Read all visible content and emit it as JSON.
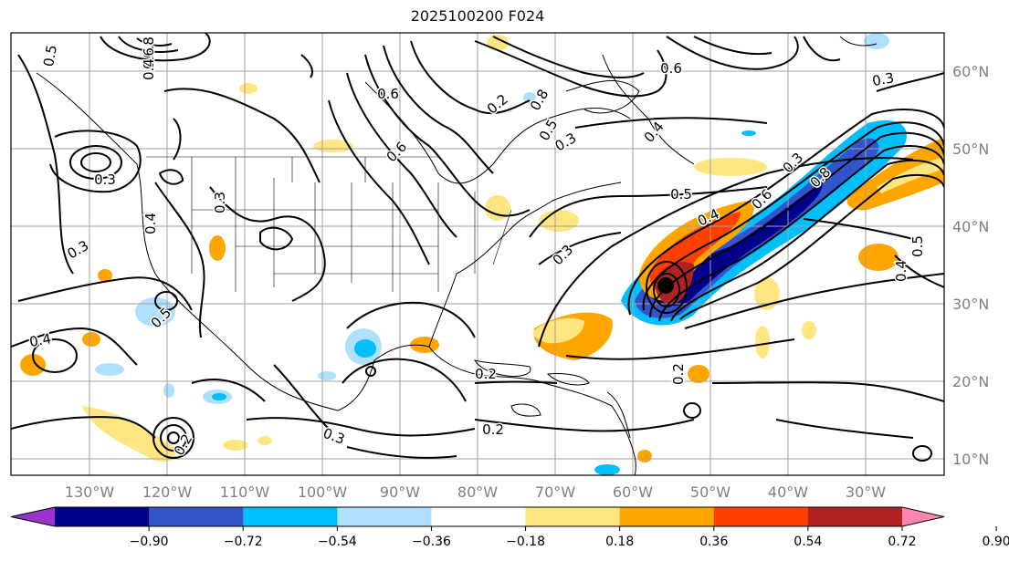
{
  "title": "2025100200 F024",
  "map": {
    "lon_labels": [
      "130°W",
      "120°W",
      "110°W",
      "100°W",
      "90°W",
      "80°W",
      "70°W",
      "60°W",
      "50°W",
      "40°W",
      "30°W"
    ],
    "lat_labels": [
      "60°N",
      "50°N",
      "40°N",
      "30°N",
      "20°N",
      "10°N"
    ],
    "contour_labels": [
      "0.8",
      "0.6",
      "0.4",
      "0.5",
      "0.6",
      "0.2",
      "0.8",
      "0.5",
      "0.3",
      "0.6",
      "0.3",
      "0.3",
      "0.3",
      "0.4",
      "0.5",
      "0.4",
      "0.2",
      "0.2",
      "0.3",
      "0.3",
      "0.4",
      "0.6",
      "0.8",
      "0.3",
      "0.4",
      "0.5",
      "0.2",
      "0.6",
      "0.4",
      "0.3",
      "0.2",
      "0.5"
    ],
    "storm_marker": "black-dot"
  },
  "colorbar": {
    "ticks": [
      "−0.90",
      "−0.72",
      "−0.54",
      "−0.36",
      "−0.18",
      "0.18",
      "0.36",
      "0.54",
      "0.72",
      "0.90"
    ],
    "colors": [
      "#9933cc",
      "#00008b",
      "#3355cc",
      "#00bfff",
      "#b0e0ff",
      "#ffffff",
      "#ffe680",
      "#ffa500",
      "#ff4000",
      "#b22222",
      "#ff85b0"
    ]
  }
}
